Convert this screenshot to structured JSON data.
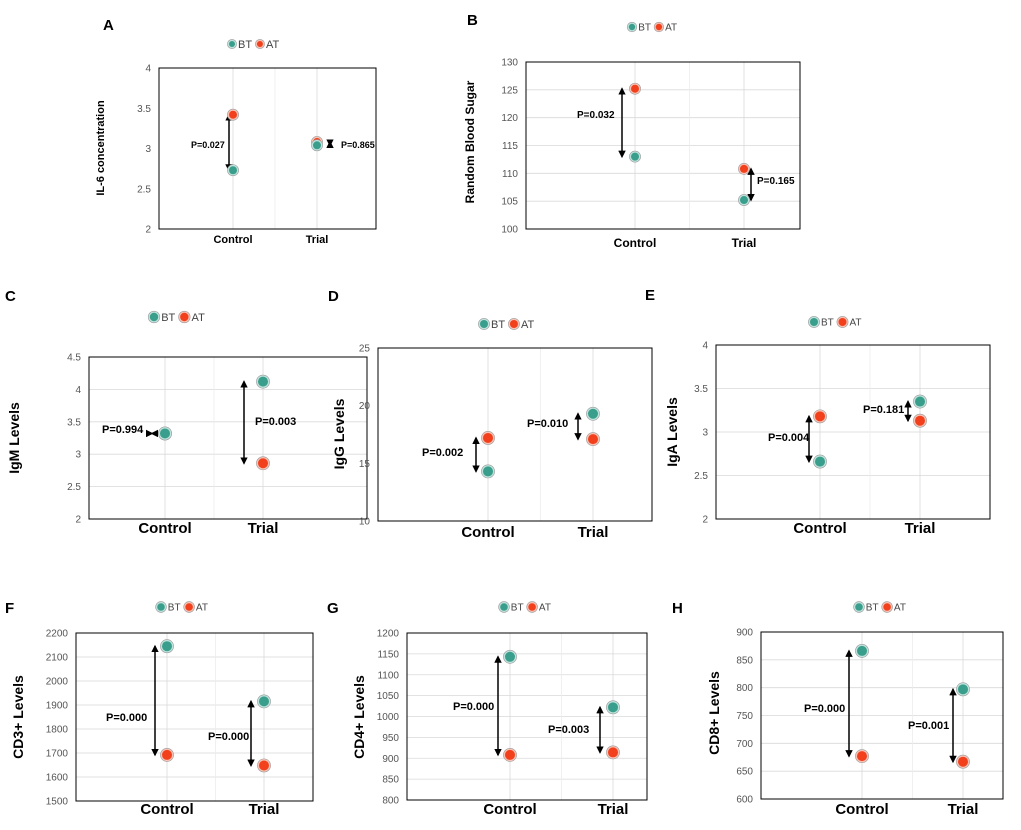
{
  "colors": {
    "bt_fill": "#3a9e8c",
    "bt_ring": "#bfe3dc",
    "at_fill": "#f2401c",
    "at_ring": "#f9c2b4",
    "grid": "#d9d9d9",
    "frame": "#000000"
  },
  "legend": {
    "bt": "BT",
    "at": "AT"
  },
  "chart_data": [
    {
      "panel": "A",
      "type": "scatter",
      "ylabel": "IL-6 concentration",
      "ylim": [
        2,
        4
      ],
      "yticks": [
        "2",
        "2.5",
        "3",
        "3.5",
        "4"
      ],
      "categories": [
        "Control",
        "Trial"
      ],
      "series": [
        {
          "name": "BT",
          "values": [
            2.73,
            3.04
          ]
        },
        {
          "name": "AT",
          "values": [
            3.42,
            3.08
          ]
        }
      ],
      "pvalues": [
        "P=0.027",
        "P=0.865"
      ]
    },
    {
      "panel": "B",
      "type": "scatter",
      "ylabel": "Random Blood Sugar",
      "ylim": [
        100,
        130
      ],
      "yticks": [
        "100",
        "105",
        "110",
        "115",
        "120",
        "125",
        "130"
      ],
      "categories": [
        "Control",
        "Trial"
      ],
      "series": [
        {
          "name": "BT",
          "values": [
            113,
            105.2
          ]
        },
        {
          "name": "AT",
          "values": [
            125.2,
            110.8
          ]
        }
      ],
      "pvalues": [
        "P=0.032",
        "P=0.165"
      ]
    },
    {
      "panel": "C",
      "type": "scatter",
      "ylabel": "IgM Levels",
      "ylim": [
        2,
        4.5
      ],
      "yticks": [
        "2",
        "2.5",
        "3",
        "3.5",
        "4",
        "4.5"
      ],
      "categories": [
        "Control",
        "Trial"
      ],
      "series": [
        {
          "name": "BT",
          "values": [
            3.32,
            4.12
          ]
        },
        {
          "name": "AT",
          "values": [
            3.32,
            2.86
          ]
        }
      ],
      "pvalues": [
        "P=0.994",
        "P=0.003"
      ]
    },
    {
      "panel": "D",
      "type": "scatter",
      "ylabel": "IgG Levels",
      "ylim": [
        10,
        25
      ],
      "yticks": [
        "10",
        "15",
        "20",
        "25"
      ],
      "categories": [
        "Control",
        "Trial"
      ],
      "series": [
        {
          "name": "BT",
          "values": [
            14.3,
            19.3
          ]
        },
        {
          "name": "AT",
          "values": [
            17.2,
            17.1
          ]
        }
      ],
      "pvalues": [
        "P=0.002",
        "P=0.010"
      ]
    },
    {
      "panel": "E",
      "type": "scatter",
      "ylabel": "IgA Levels",
      "ylim": [
        2,
        4
      ],
      "yticks": [
        "2",
        "2.5",
        "3",
        "3.5",
        "4"
      ],
      "categories": [
        "Control",
        "Trial"
      ],
      "series": [
        {
          "name": "BT",
          "values": [
            2.66,
            3.35
          ]
        },
        {
          "name": "AT",
          "values": [
            3.18,
            3.13
          ]
        }
      ],
      "pvalues": [
        "P=0.004",
        "P=0.181"
      ]
    },
    {
      "panel": "F",
      "type": "scatter",
      "ylabel": "CD3+ Levels",
      "ylim": [
        1500,
        2200
      ],
      "yticks": [
        "1500",
        "1600",
        "1700",
        "1800",
        "1900",
        "2000",
        "2100",
        "2200"
      ],
      "categories": [
        "Control",
        "Trial"
      ],
      "series": [
        {
          "name": "BT",
          "values": [
            2145,
            1915
          ]
        },
        {
          "name": "AT",
          "values": [
            1692,
            1648
          ]
        }
      ],
      "pvalues": [
        "P=0.000",
        "P=0.000"
      ]
    },
    {
      "panel": "G",
      "type": "scatter",
      "ylabel": "CD4+ Levels",
      "ylim": [
        800,
        1200
      ],
      "yticks": [
        "800",
        "850",
        "900",
        "950",
        "1000",
        "1050",
        "1100",
        "1150",
        "1200"
      ],
      "categories": [
        "Control",
        "Trial"
      ],
      "series": [
        {
          "name": "BT",
          "values": [
            1143,
            1022
          ]
        },
        {
          "name": "AT",
          "values": [
            908,
            914
          ]
        }
      ],
      "pvalues": [
        "P=0.000",
        "P=0.003"
      ]
    },
    {
      "panel": "H",
      "type": "scatter",
      "ylabel": "CD8+ Levels",
      "ylim": [
        600,
        900
      ],
      "yticks": [
        "600",
        "650",
        "700",
        "750",
        "800",
        "850",
        "900"
      ],
      "categories": [
        "Control",
        "Trial"
      ],
      "series": [
        {
          "name": "BT",
          "values": [
            866,
            797
          ]
        },
        {
          "name": "AT",
          "values": [
            677,
            667
          ]
        }
      ],
      "pvalues": [
        "P=0.000",
        "P=0.001"
      ]
    }
  ]
}
